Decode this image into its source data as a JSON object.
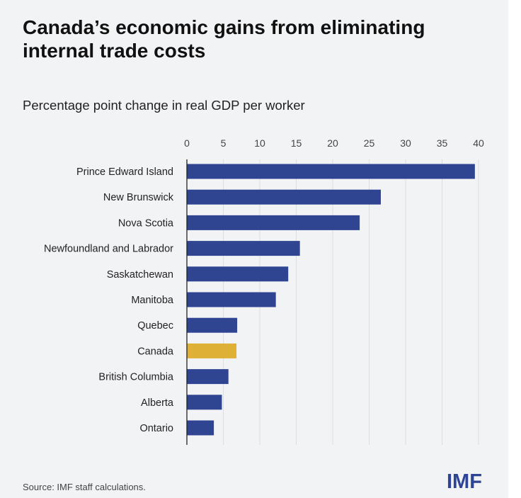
{
  "chart_data": {
    "type": "bar",
    "orientation": "horizontal",
    "title": "Canada’s economic gains from eliminating internal trade costs",
    "subtitle": "Percentage point change in real GDP per worker",
    "categories": [
      "Prince Edward Island",
      "New Brunswick",
      "Nova Scotia",
      "Newfoundland and Labrador",
      "Saskatchewan",
      "Manitoba",
      "Quebec",
      "Canada",
      "British Columbia",
      "Alberta",
      "Ontario"
    ],
    "values": [
      39.5,
      26.6,
      23.7,
      15.5,
      13.9,
      12.2,
      6.9,
      6.8,
      5.7,
      4.8,
      3.7
    ],
    "highlight": "Canada",
    "xlim": [
      0,
      40
    ],
    "xticks": [
      "0",
      "5",
      "10",
      "15",
      "20",
      "25",
      "30",
      "35",
      "40"
    ],
    "xaxis_position": "top",
    "grid": true,
    "colors": {
      "bar": "#304592",
      "highlight": "#deb035",
      "background": "#f2f3f5"
    }
  },
  "source": "Source: IMF staff calculations.",
  "logo": "IMF"
}
